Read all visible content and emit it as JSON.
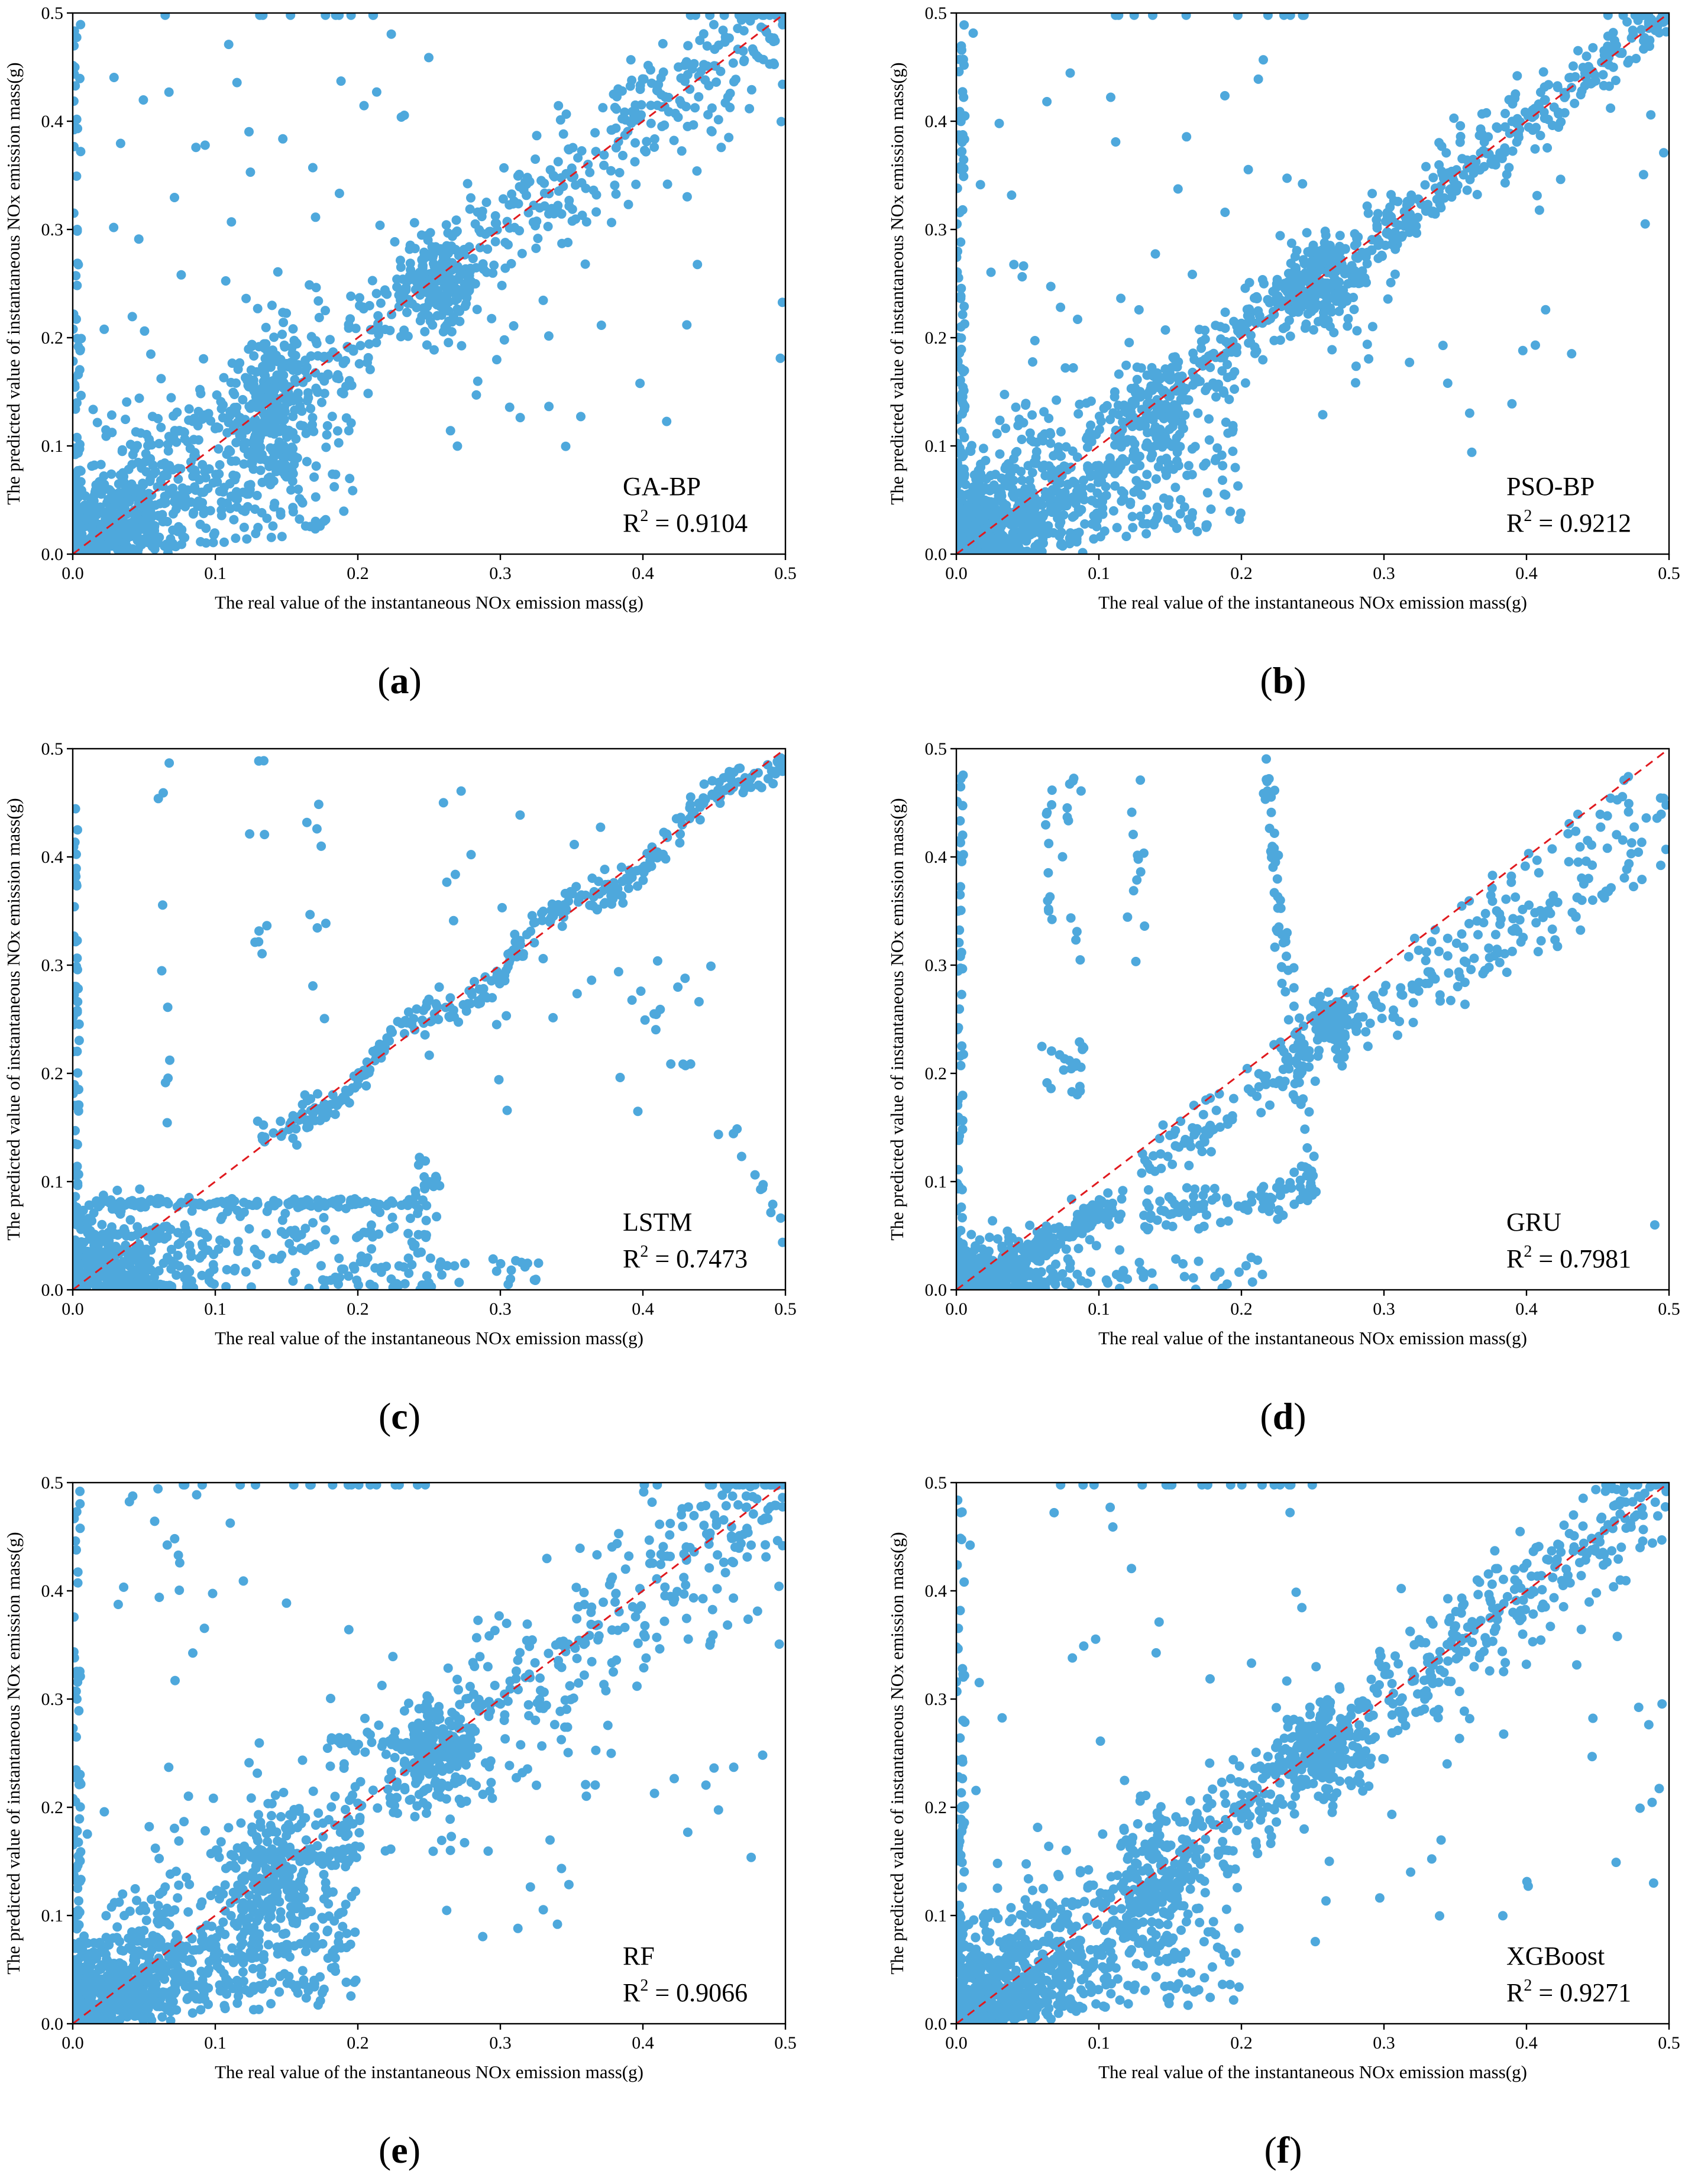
{
  "figure": {
    "panel_label_open": "(",
    "panel_label_close": ")",
    "point_color": "#4ea8dc",
    "ref_line_color": "#e0191e"
  },
  "chart_data": [
    {
      "type": "scatter",
      "panel": "a",
      "model": "GA-BP",
      "r2_prefix": "R",
      "r2_sup": "2",
      "r2_value": " = 0.9104",
      "xlabel": "The real value of the instantaneous NOx emission mass(g)",
      "ylabel": "The predicted value of instantaneous NOx emission mass(g)",
      "xlim": [
        0,
        0.5
      ],
      "ylim": [
        0,
        0.5
      ],
      "xticks": [
        "0.0",
        "0.1",
        "0.2",
        "0.3",
        "0.4",
        "0.5"
      ],
      "yticks": [
        "0.0",
        "0.1",
        "0.2",
        "0.3",
        "0.4",
        "0.5"
      ],
      "reference_line": "y = x",
      "series": [
        {
          "name": "samples",
          "pattern": "GA-BP",
          "n": 1700,
          "seed": 11
        }
      ]
    },
    {
      "type": "scatter",
      "panel": "b",
      "model": "PSO-BP",
      "r2_prefix": "R",
      "r2_sup": "2",
      "r2_value": " = 0.9212",
      "xlabel": "The real value of the instantaneous NOx emission mass(g)",
      "ylabel": "The predicted value of instantaneous NOx emission mass(g)",
      "xlim": [
        0,
        0.5
      ],
      "ylim": [
        0,
        0.5
      ],
      "xticks": [
        "0.0",
        "0.1",
        "0.2",
        "0.3",
        "0.4",
        "0.5"
      ],
      "yticks": [
        "0.0",
        "0.1",
        "0.2",
        "0.3",
        "0.4",
        "0.5"
      ],
      "reference_line": "y = x",
      "series": [
        {
          "name": "samples",
          "pattern": "PSO-BP",
          "n": 1700,
          "seed": 23
        }
      ]
    },
    {
      "type": "scatter",
      "panel": "c",
      "model": "LSTM",
      "r2_prefix": "R",
      "r2_sup": "2",
      "r2_value": " = 0.7473",
      "xlabel": "The real value of the instantaneous NOx emission mass(g)",
      "ylabel": "The predicted value of instantaneous NOx emission mass(g)",
      "xlim": [
        0,
        0.5
      ],
      "ylim": [
        0,
        0.5
      ],
      "xticks": [
        "0.0",
        "0.1",
        "0.2",
        "0.3",
        "0.4",
        "0.5"
      ],
      "yticks": [
        "0.0",
        "0.1",
        "0.2",
        "0.3",
        "0.4",
        "0.5"
      ],
      "reference_line": "y = x",
      "series": [
        {
          "name": "samples",
          "pattern": "LSTM",
          "n": 1300,
          "seed": 37
        }
      ]
    },
    {
      "type": "scatter",
      "panel": "d",
      "model": "GRU",
      "r2_prefix": "R",
      "r2_sup": "2",
      "r2_value": " = 0.7981",
      "xlabel": "The real value of the instantaneous NOx emission mass(g)",
      "ylabel": "The predicted value of instantaneous NOx emission mass(g)",
      "xlim": [
        0,
        0.5
      ],
      "ylim": [
        0,
        0.5
      ],
      "xticks": [
        "0.0",
        "0.1",
        "0.2",
        "0.3",
        "0.4",
        "0.5"
      ],
      "yticks": [
        "0.0",
        "0.1",
        "0.2",
        "0.3",
        "0.4",
        "0.5"
      ],
      "reference_line": "y = x",
      "series": [
        {
          "name": "samples",
          "pattern": "GRU",
          "n": 1300,
          "seed": 41
        }
      ]
    },
    {
      "type": "scatter",
      "panel": "e",
      "model": "RF",
      "r2_prefix": "R",
      "r2_sup": "2",
      "r2_value": " = 0.9066",
      "xlabel": "The real value of the instantaneous NOx emission mass(g)",
      "ylabel": "The predicted value of instantaneous NOx emission mass(g)",
      "xlim": [
        0,
        0.5
      ],
      "ylim": [
        0,
        0.5
      ],
      "xticks": [
        "0.0",
        "0.1",
        "0.2",
        "0.3",
        "0.4",
        "0.5"
      ],
      "yticks": [
        "0.0",
        "0.1",
        "0.2",
        "0.3",
        "0.4",
        "0.5"
      ],
      "reference_line": "y = x",
      "series": [
        {
          "name": "samples",
          "pattern": "RF",
          "n": 1700,
          "seed": 53
        }
      ]
    },
    {
      "type": "scatter",
      "panel": "f",
      "model": "XGBoost",
      "r2_prefix": "R",
      "r2_sup": "2",
      "r2_value": " = 0.9271",
      "xlabel": "The real value of the instantaneous NOx emission mass(g)",
      "ylabel": "The predicted value of instantaneous NOx emission mass(g)",
      "xlim": [
        0,
        0.5
      ],
      "ylim": [
        0,
        0.5
      ],
      "xticks": [
        "0.0",
        "0.1",
        "0.2",
        "0.3",
        "0.4",
        "0.5"
      ],
      "yticks": [
        "0.0",
        "0.1",
        "0.2",
        "0.3",
        "0.4",
        "0.5"
      ],
      "reference_line": "y = x",
      "series": [
        {
          "name": "samples",
          "pattern": "XGBoost",
          "n": 1700,
          "seed": 67
        }
      ]
    }
  ]
}
